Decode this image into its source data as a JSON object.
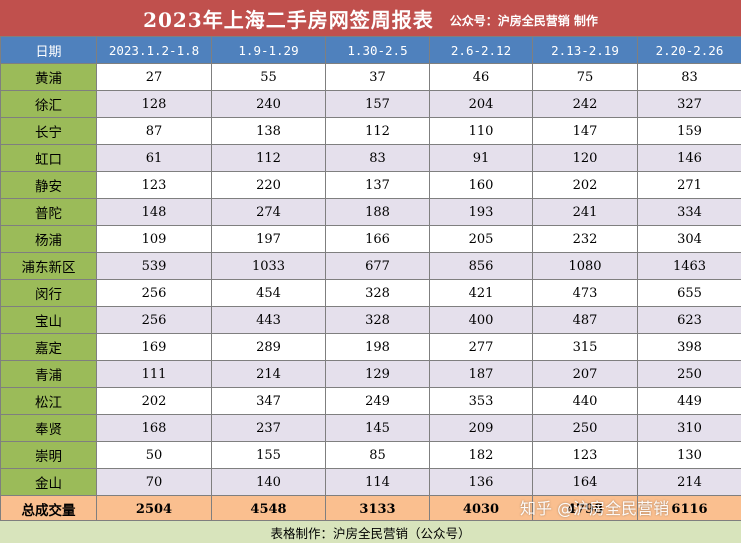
{
  "title": "2023年上海二手房网签周报表",
  "credit": "公众号：沪房全民营销 制作",
  "header_label": "日期",
  "weeks": [
    "2023.1.2-1.8",
    "1.9-1.29",
    "1.30-2.5",
    "2.6-2.12",
    "2.13-2.19",
    "2.20-2.26"
  ],
  "rows": [
    {
      "district": "黄浦",
      "values": [
        "27",
        "55",
        "37",
        "46",
        "75",
        "83"
      ]
    },
    {
      "district": "徐汇",
      "values": [
        "128",
        "240",
        "157",
        "204",
        "242",
        "327"
      ]
    },
    {
      "district": "长宁",
      "values": [
        "87",
        "138",
        "112",
        "110",
        "147",
        "159"
      ]
    },
    {
      "district": "虹口",
      "values": [
        "61",
        "112",
        "83",
        "91",
        "120",
        "146"
      ]
    },
    {
      "district": "静安",
      "values": [
        "123",
        "220",
        "137",
        "160",
        "202",
        "271"
      ]
    },
    {
      "district": "普陀",
      "values": [
        "148",
        "274",
        "188",
        "193",
        "241",
        "334"
      ]
    },
    {
      "district": "杨浦",
      "values": [
        "109",
        "197",
        "166",
        "205",
        "232",
        "304"
      ]
    },
    {
      "district": "浦东新区",
      "values": [
        "539",
        "1033",
        "677",
        "856",
        "1080",
        "1463"
      ]
    },
    {
      "district": "闵行",
      "values": [
        "256",
        "454",
        "328",
        "421",
        "473",
        "655"
      ]
    },
    {
      "district": "宝山",
      "values": [
        "256",
        "443",
        "328",
        "400",
        "487",
        "623"
      ]
    },
    {
      "district": "嘉定",
      "values": [
        "169",
        "289",
        "198",
        "277",
        "315",
        "398"
      ]
    },
    {
      "district": "青浦",
      "values": [
        "111",
        "214",
        "129",
        "187",
        "207",
        "250"
      ]
    },
    {
      "district": "松江",
      "values": [
        "202",
        "347",
        "249",
        "353",
        "440",
        "449"
      ]
    },
    {
      "district": "奉贤",
      "values": [
        "168",
        "237",
        "145",
        "209",
        "250",
        "310"
      ]
    },
    {
      "district": "崇明",
      "values": [
        "50",
        "155",
        "85",
        "182",
        "123",
        "130"
      ]
    },
    {
      "district": "金山",
      "values": [
        "70",
        "140",
        "114",
        "136",
        "164",
        "214"
      ]
    }
  ],
  "total": {
    "label": "总成交量",
    "values": [
      "2504",
      "4548",
      "3133",
      "4030",
      "4798",
      "6116"
    ]
  },
  "footer": "表格制作：沪房全民营销（公众号）",
  "watermark": "知乎 @沪房全民营销",
  "colors": {
    "title_bg": "#c0504d",
    "header_bg": "#4f81bd",
    "district_bg": "#9bbb59",
    "alt_row_bg": "#e5e0ec",
    "total_bg": "#fabf8f",
    "footer_bg": "#d8e4bc"
  }
}
